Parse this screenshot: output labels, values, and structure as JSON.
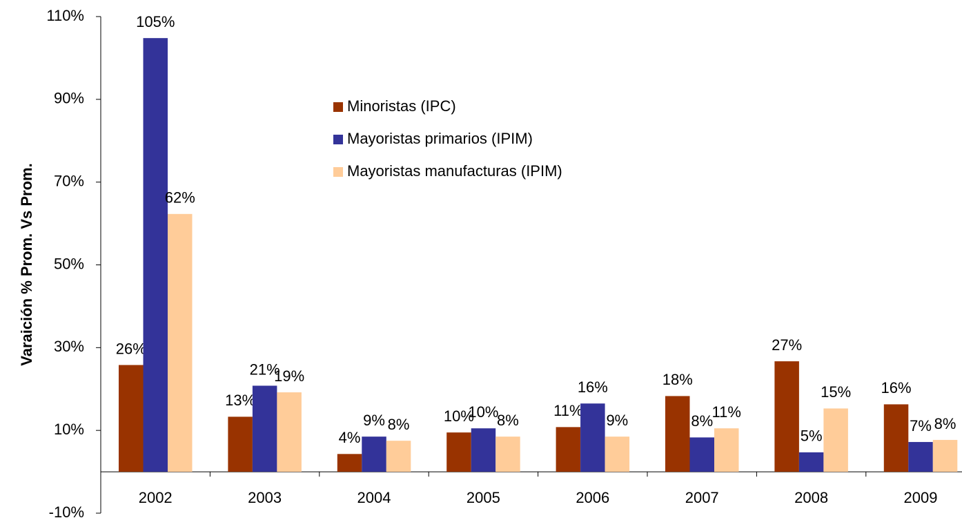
{
  "chart_data": {
    "type": "bar",
    "y_label": "Varaición % Prom. Vs Prom.",
    "categories": [
      "2002",
      "2003",
      "2004",
      "2005",
      "2006",
      "2007",
      "2008",
      "2009"
    ],
    "series": [
      {
        "name": "Minoristas (IPC)",
        "color": "#993300",
        "values": [
          25.8,
          13.3,
          4.3,
          9.5,
          10.8,
          18.3,
          26.7,
          16.3
        ],
        "value_labels": [
          "26%",
          "13%",
          "4%",
          "10%",
          "11%",
          "18%",
          "27%",
          "16%"
        ]
      },
      {
        "name": "Mayoristas primarios (IPIM)",
        "color": "#333399",
        "values": [
          104.8,
          20.8,
          8.5,
          10.5,
          16.5,
          8.3,
          4.7,
          7.2
        ],
        "value_labels": [
          "105%",
          "21%",
          "9%",
          "10%",
          "16%",
          "8%",
          "5%",
          "7%"
        ]
      },
      {
        "name": "Mayoristas manufacturas (IPIM)",
        "color": "#FFCC99",
        "values": [
          62.3,
          19.2,
          7.5,
          8.5,
          8.5,
          10.5,
          15.3,
          7.7
        ],
        "value_labels": [
          "62%",
          "19%",
          "8%",
          "8%",
          "9%",
          "11%",
          "15%",
          "8%"
        ]
      }
    ],
    "ylim": [
      -10,
      110
    ],
    "yticks": [
      {
        "value": -10,
        "label": "-10%"
      },
      {
        "value": 10,
        "label": "10%"
      },
      {
        "value": 30,
        "label": "30%"
      },
      {
        "value": 50,
        "label": "50%"
      },
      {
        "value": 70,
        "label": "70%"
      },
      {
        "value": 90,
        "label": "90%"
      },
      {
        "value": 110,
        "label": "110%"
      }
    ],
    "grid": false
  }
}
